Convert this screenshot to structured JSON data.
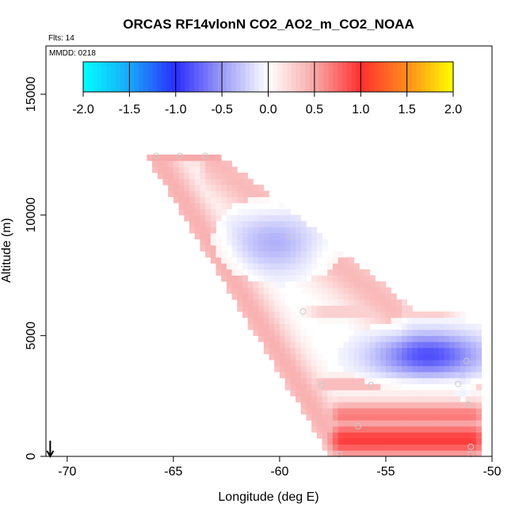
{
  "chart_data": {
    "type": "heatmap",
    "title": "ORCAS RF14vlonN CO2_AO2_m_CO2_NOAA",
    "flights_label": "Flts: 14",
    "date_label": "MMDD: 0218",
    "xlabel": "Longitude (deg E)",
    "ylabel": "Altitude (m)",
    "xlim": [
      -71,
      -50
    ],
    "ylim": [
      0,
      17000
    ],
    "xticks": [
      -70,
      -65,
      -60,
      -55,
      -50
    ],
    "yticks": [
      0,
      5000,
      10000,
      15000
    ],
    "colorbar": {
      "range": [
        -2.0,
        2.0
      ],
      "ticks": [
        "-2.0",
        "-1.5",
        "-1.0",
        "-0.5",
        "0.0",
        "0.5",
        "1.0",
        "1.5",
        "2.0"
      ],
      "stops": [
        {
          "v": -2.0,
          "c": "#00FFFF"
        },
        {
          "v": -1.5,
          "c": "#19A8F8"
        },
        {
          "v": -1.0,
          "c": "#2C2CFF"
        },
        {
          "v": -0.5,
          "c": "#9A9AF8"
        },
        {
          "v": 0.0,
          "c": "#FFFFFF"
        },
        {
          "v": 0.5,
          "c": "#F8A8A8"
        },
        {
          "v": 1.0,
          "c": "#FF3030"
        },
        {
          "v": 1.5,
          "c": "#FF8C1A"
        },
        {
          "v": 2.0,
          "c": "#FFFF00"
        }
      ]
    },
    "field": {
      "bands": [
        {
          "name": "upper-flight-left-edge",
          "a": [
            -65.8,
            12400
          ],
          "b": [
            -57.2,
            300
          ],
          "width_deg": 0.55,
          "value": 0.45
        },
        {
          "name": "upper-flight-right-edge",
          "a": [
            -63.3,
            12400
          ],
          "b": [
            -54.5,
            6000
          ],
          "width_deg": 0.5,
          "value": 0.4
        },
        {
          "name": "top-leg",
          "a": [
            -65.8,
            12400
          ],
          "b": [
            -63.0,
            12400
          ],
          "width_alt": 250,
          "value": 0.5
        },
        {
          "name": "mid-right-return",
          "a": [
            -57.8,
            6000
          ],
          "b": [
            -52.5,
            6000
          ],
          "width_alt": 250,
          "value": 0.35
        },
        {
          "name": "lower-leg-3000",
          "a": [
            -57.8,
            3000
          ],
          "b": [
            -51.2,
            3000
          ],
          "width_alt": 300,
          "value": 0.45
        },
        {
          "name": "boundary-layer",
          "a": [
            -57.0,
            700
          ],
          "b": [
            -51.0,
            700
          ],
          "width_alt": 800,
          "value": 0.95
        },
        {
          "name": "boundary-layer-mid",
          "a": [
            -57.0,
            1700
          ],
          "b": [
            -51.0,
            1700
          ],
          "width_alt": 600,
          "value": 0.7
        }
      ],
      "blobs": [
        {
          "name": "upper-blue",
          "center": [
            -60.0,
            9000
          ],
          "sx": 1.5,
          "sy": 900,
          "value": -0.45
        },
        {
          "name": "mid-blue",
          "center": [
            -53.0,
            4200
          ],
          "sx": 1.8,
          "sy": 650,
          "value": -0.85
        },
        {
          "name": "mid-blue-right",
          "center": [
            -51.4,
            4000
          ],
          "sx": 0.4,
          "sy": 800,
          "value": -0.4
        }
      ]
    },
    "observations": [
      {
        "lon": -65.8,
        "alt": 12450
      },
      {
        "lon": -64.7,
        "alt": 12450
      },
      {
        "lon": -63.5,
        "alt": 12450
      },
      {
        "lon": -59.5,
        "alt": 9100
      },
      {
        "lon": -58.9,
        "alt": 6000
      },
      {
        "lon": -58.0,
        "alt": 2950
      },
      {
        "lon": -55.7,
        "alt": 2950
      },
      {
        "lon": -56.3,
        "alt": 1250
      },
      {
        "lon": -51.2,
        "alt": 3950
      },
      {
        "lon": -51.6,
        "alt": 3000
      },
      {
        "lon": -51.1,
        "alt": 2150
      },
      {
        "lon": -51.0,
        "alt": 400
      },
      {
        "lon": -51.0,
        "alt": 100
      },
      {
        "lon": -57.2,
        "alt": 100
      }
    ],
    "arrow": {
      "lon": -70.8,
      "alt_top": 650,
      "alt_bottom": 0,
      "direction": "down"
    }
  }
}
